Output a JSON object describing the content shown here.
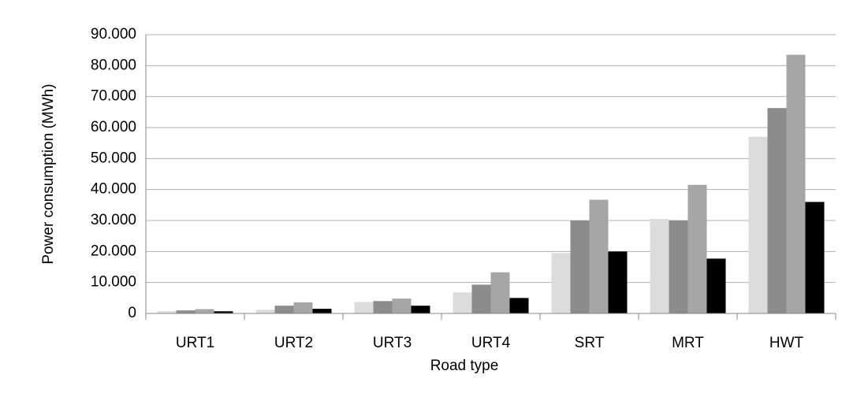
{
  "chart_data": {
    "type": "bar",
    "x_label": "Road type",
    "y_label": "Power consumption (MWh)",
    "categories": [
      "URT1",
      "URT2",
      "URT3",
      "URT4",
      "SRT",
      "MRT",
      "HWT"
    ],
    "series": [
      {
        "color": "#dcdcdc",
        "values": [
          700,
          1200,
          3700,
          6800,
          19500,
          30500,
          57000
        ]
      },
      {
        "color": "#8c8c8c",
        "values": [
          1000,
          2500,
          4000,
          9300,
          30000,
          30000,
          66300
        ]
      },
      {
        "color": "#a6a6a6",
        "values": [
          1400,
          3600,
          4800,
          13300,
          36700,
          41500,
          83500
        ]
      },
      {
        "color": "#000000",
        "values": [
          700,
          1500,
          2500,
          5000,
          20000,
          17700,
          36000
        ]
      }
    ],
    "ylim": [
      0,
      90000
    ],
    "yticks": [
      0,
      {
        "value": 10000,
        "label": "10.000"
      },
      {
        "value": 20000,
        "label": "20.000"
      },
      {
        "value": 30000,
        "label": "30.000"
      },
      {
        "value": 40000,
        "label": "40.000"
      },
      {
        "value": 50000,
        "label": "50.000"
      },
      {
        "value": 60000,
        "label": "60.000"
      },
      {
        "value": 70000,
        "label": "70.000"
      },
      {
        "value": 80000,
        "label": "80.000"
      },
      {
        "value": 90000,
        "label": "90.000"
      }
    ],
    "grid": true
  }
}
